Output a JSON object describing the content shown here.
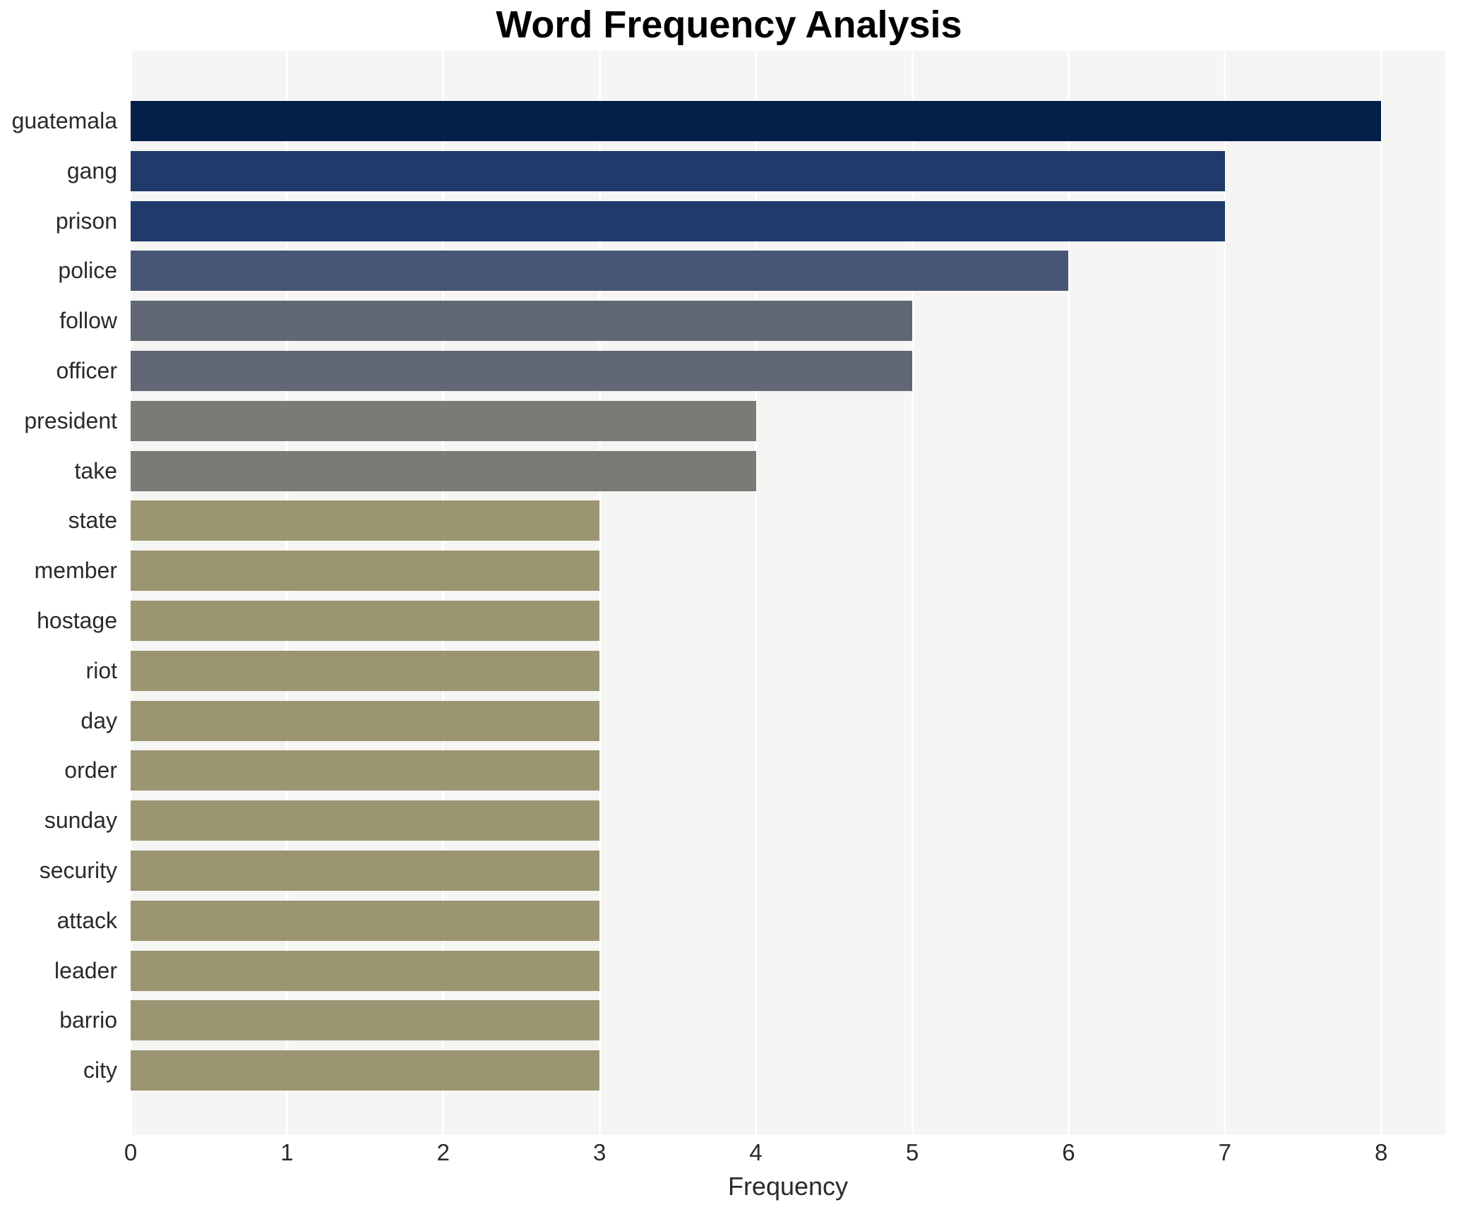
{
  "title": "Word Frequency Analysis",
  "chart_data": {
    "type": "bar",
    "orientation": "horizontal",
    "title": "Word Frequency Analysis",
    "xlabel": "Frequency",
    "ylabel": "",
    "categories": [
      "guatemala",
      "gang",
      "prison",
      "police",
      "follow",
      "officer",
      "president",
      "take",
      "state",
      "member",
      "hostage",
      "riot",
      "day",
      "order",
      "sunday",
      "security",
      "attack",
      "leader",
      "barrio",
      "city"
    ],
    "values": [
      8,
      7,
      7,
      6,
      5,
      5,
      4,
      4,
      3,
      3,
      3,
      3,
      3,
      3,
      3,
      3,
      3,
      3,
      3,
      3
    ],
    "xticks": [
      0,
      1,
      2,
      3,
      4,
      5,
      6,
      7,
      8
    ],
    "xlim": [
      0,
      8.41
    ],
    "grid": "vertical-white-gridlines",
    "legend": false,
    "value_labels_shown": false,
    "colors": {
      "bars_by_value": {
        "8": "#04204a",
        "7": "#1f3a6b",
        "6": "#475674",
        "5": "#616774",
        "4": "#7b7a76",
        "3": "#9c9572"
      },
      "plot_background": "#f5f5f3",
      "figure_background": "#ffffff",
      "gridline": "#ffffff",
      "tick_text": "#2a2a2a",
      "title_text": "#000000"
    }
  }
}
